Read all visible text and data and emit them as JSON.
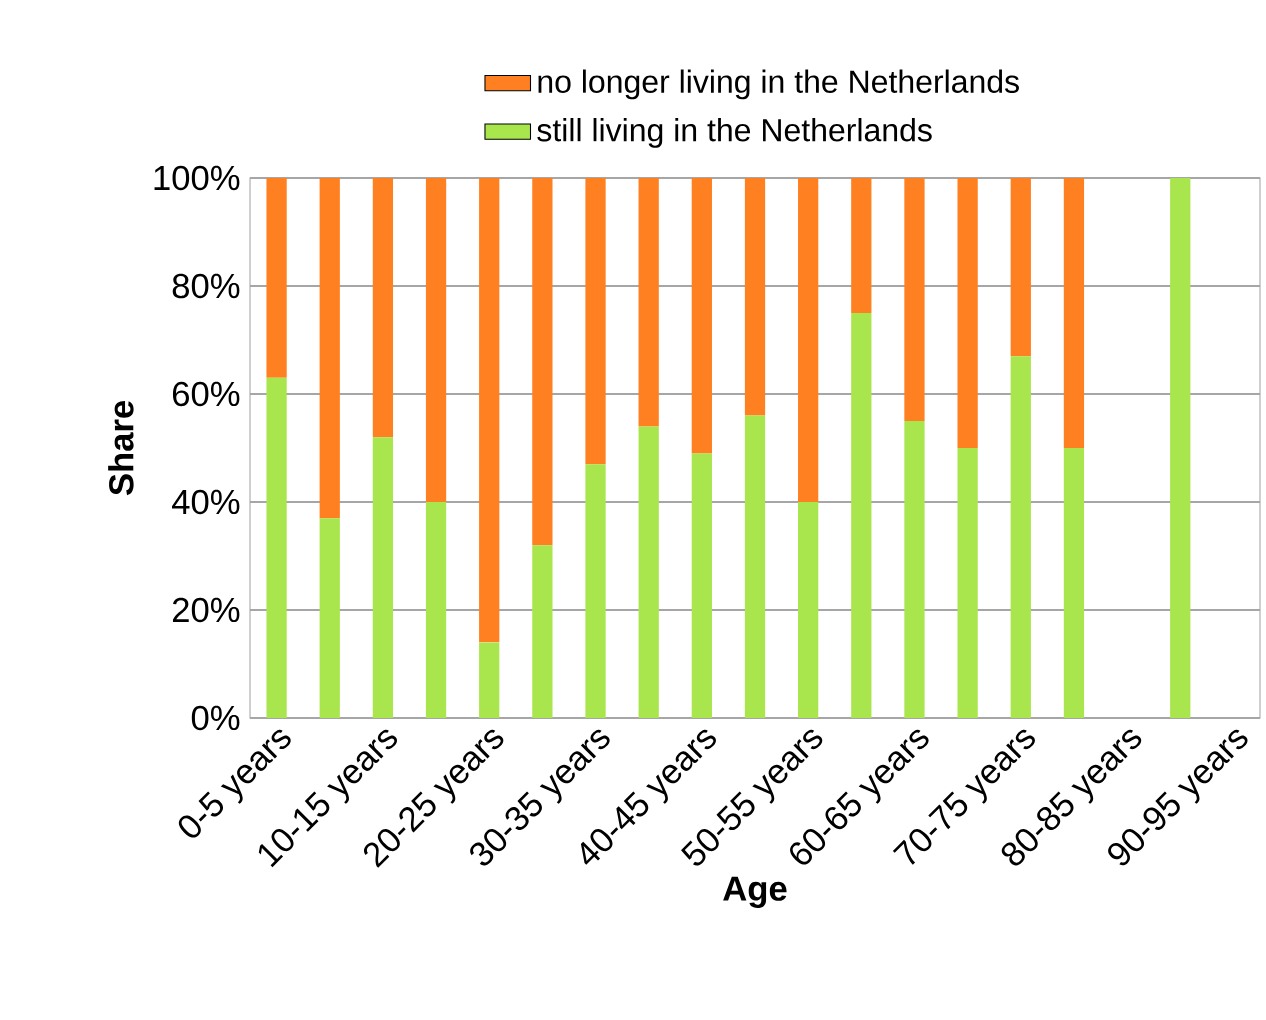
{
  "chart_data": {
    "type": "bar",
    "stacked": true,
    "xlabel": "Age",
    "ylabel": "Share",
    "categories": [
      "0-5 years",
      null,
      "10-15 years",
      null,
      "20-25 years",
      null,
      "30-35 years",
      null,
      "40-45 years",
      null,
      "50-55 years",
      null,
      "60-65 years",
      null,
      "70-75 years",
      null,
      "80-85 years",
      null,
      "90-95 years"
    ],
    "series": [
      {
        "name": "still living in the Netherlands",
        "color": "#a9e64d",
        "values": [
          63,
          37,
          52,
          40,
          14,
          32,
          47,
          54,
          49,
          56,
          40,
          75,
          55,
          50,
          67,
          50,
          null,
          100,
          null
        ]
      },
      {
        "name": "no longer living in the Netherlands",
        "color": "#ff8020",
        "values": [
          37,
          63,
          48,
          60,
          86,
          68,
          53,
          46,
          51,
          44,
          60,
          25,
          45,
          50,
          33,
          50,
          null,
          0,
          null
        ]
      }
    ],
    "ylim": [
      0,
      100
    ],
    "yticks": [
      {
        "value": 0,
        "label": "0%"
      },
      {
        "value": 20,
        "label": "20%"
      },
      {
        "value": 40,
        "label": "40%"
      },
      {
        "value": 60,
        "label": "60%"
      },
      {
        "value": 80,
        "label": "80%"
      },
      {
        "value": 100,
        "label": "100%"
      }
    ],
    "grid": "y",
    "legend": "top"
  }
}
